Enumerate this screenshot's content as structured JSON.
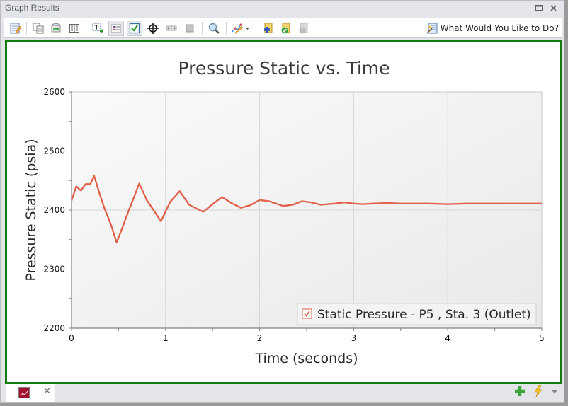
{
  "window": {
    "title": "Graph Results",
    "maximize_icon": "maximize-icon",
    "close_icon": "close-icon"
  },
  "toolbar": {
    "items": [
      {
        "name": "edit-graph-icon",
        "label": "Edit graph"
      },
      {
        "name": "copy-icon",
        "label": "Copy"
      },
      {
        "name": "export-icon",
        "label": "Export"
      },
      {
        "name": "table-icon",
        "label": "Show data table"
      },
      {
        "name": "add-text-icon",
        "label": "Add text"
      },
      {
        "name": "legend-icon",
        "label": "Show legend"
      },
      {
        "name": "checkbox-icon",
        "label": "Show checkboxes"
      },
      {
        "name": "crosshair-icon",
        "label": "Crosshair"
      },
      {
        "name": "slider-icon",
        "label": "Animation slider"
      },
      {
        "name": "stop-icon",
        "label": "Stop"
      },
      {
        "name": "zoom-icon",
        "label": "Zoom"
      },
      {
        "name": "chart-style-icon",
        "label": "Chart style"
      },
      {
        "name": "add-folder-icon",
        "label": "Add to folder"
      },
      {
        "name": "folder-check-icon",
        "label": "Folder check"
      },
      {
        "name": "folder-disabled-icon",
        "label": "Folder disabled"
      }
    ],
    "help_label": "What Would You Like to Do?"
  },
  "chart_data": {
    "type": "line",
    "title": "Pressure Static vs. Time",
    "xlabel": "Time (seconds)",
    "ylabel": "Pressure Static (psia)",
    "xlim": [
      0,
      5
    ],
    "ylim": [
      2200,
      2600
    ],
    "x_ticks": [
      "0",
      "1",
      "2",
      "3",
      "4",
      "5"
    ],
    "y_ticks": [
      "2200",
      "2300",
      "2400",
      "2500",
      "2600"
    ],
    "grid": true,
    "legend_position": "lower right",
    "series": [
      {
        "name": "Static Pressure - P5 , Sta. 3 (Outlet)",
        "color": "#e0604a",
        "x": [
          0,
          0.05,
          0.1,
          0.15,
          0.2,
          0.24,
          0.3,
          0.35,
          0.42,
          0.48,
          0.54,
          0.6,
          0.66,
          0.72,
          0.8,
          0.88,
          0.95,
          1.05,
          1.15,
          1.25,
          1.4,
          1.5,
          1.6,
          1.7,
          1.8,
          1.9,
          2.0,
          2.1,
          2.25,
          2.35,
          2.45,
          2.55,
          2.65,
          2.8,
          2.9,
          3.0,
          3.1,
          3.2,
          3.35,
          3.5,
          3.6,
          3.8,
          4.0,
          4.2,
          4.5,
          5.0
        ],
        "values": [
          2416,
          2440,
          2433,
          2444,
          2444,
          2458,
          2427,
          2403,
          2375,
          2345,
          2370,
          2396,
          2420,
          2445,
          2417,
          2398,
          2381,
          2414,
          2432,
          2409,
          2397,
          2410,
          2422,
          2412,
          2404,
          2408,
          2417,
          2415,
          2407,
          2409,
          2415,
          2413,
          2409,
          2411,
          2413,
          2411,
          2410,
          2411,
          2412,
          2411,
          2411,
          2411,
          2410,
          2411,
          2411,
          2411
        ]
      }
    ]
  },
  "legend": {
    "label": "Static Pressure - P5 , Sta. 3 (Outlet)",
    "checked": true
  },
  "tabs": [
    {
      "icon": "line-chart-icon",
      "close_icon": "close-icon"
    }
  ],
  "bottom_right": {
    "add_icon": "add-icon",
    "lightning_icon": "lightning-icon",
    "dropdown_icon": "dropdown-arrow-icon"
  }
}
